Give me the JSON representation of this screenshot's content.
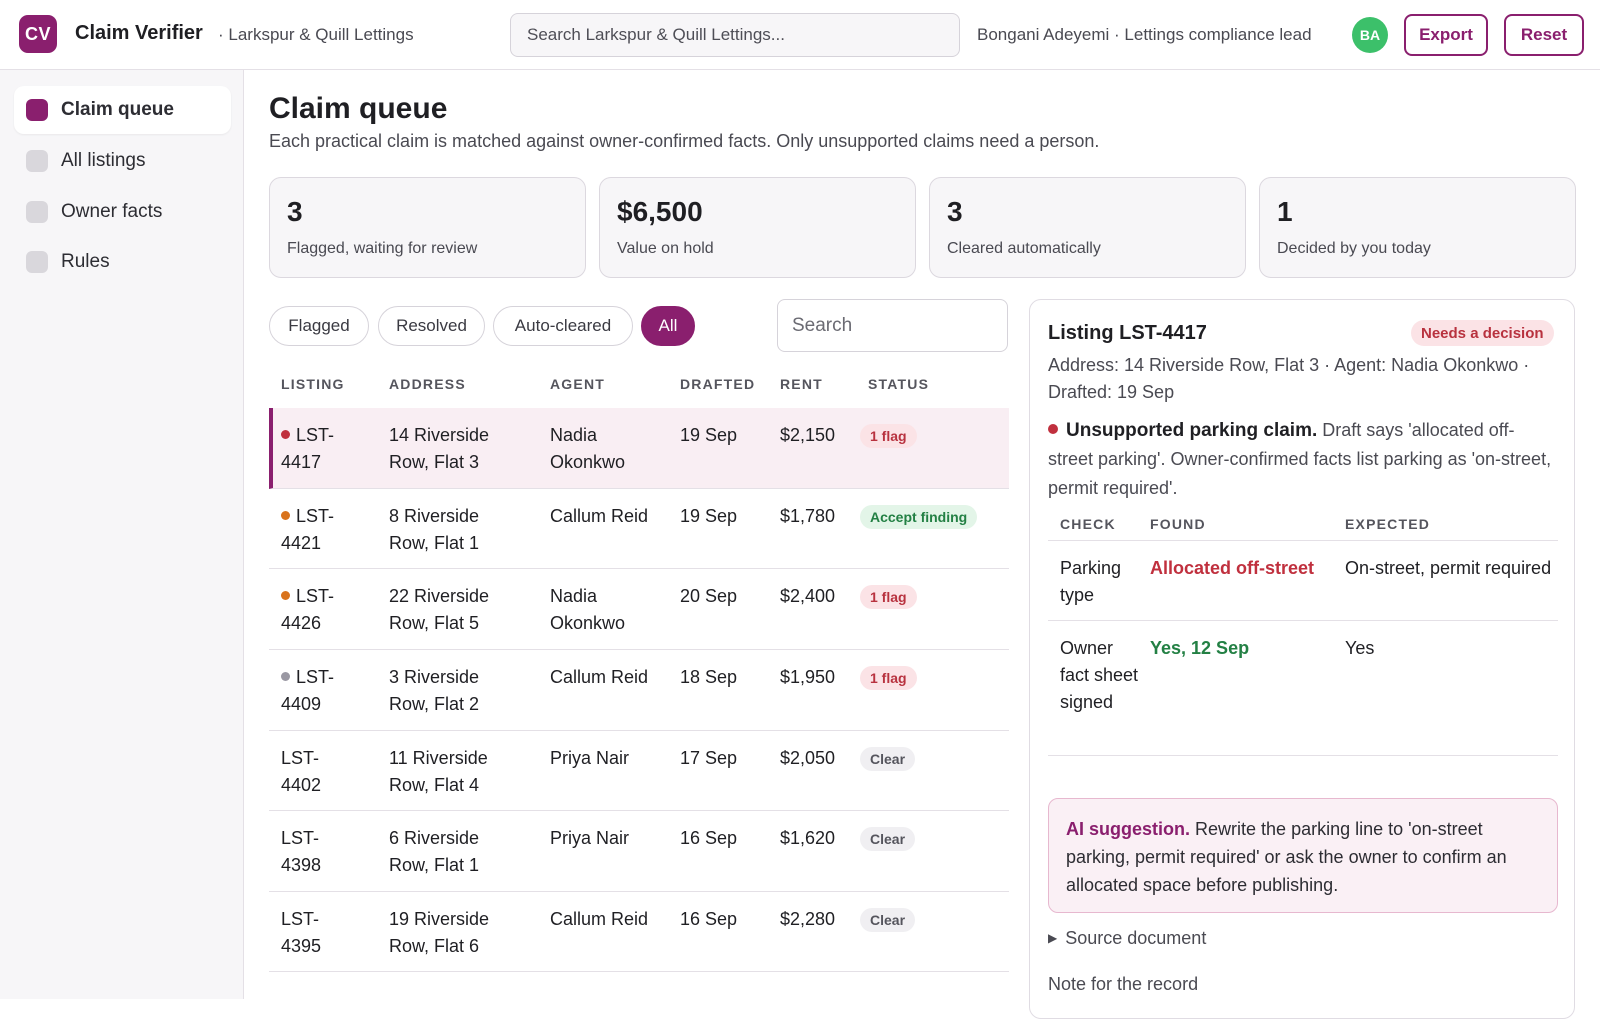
{
  "app": {
    "logo": "CV",
    "title": "Claim Verifier",
    "org": "· Larkspur & Quill Lettings",
    "search_placeholder": "Search Larkspur & Quill Lettings...",
    "user_label": "Bongani Adeyemi · Lettings compliance lead",
    "avatar_initials": "BA",
    "export_label": "Export",
    "reset_label": "Reset"
  },
  "sidebar": {
    "items": [
      {
        "label": "Claim queue",
        "active": true
      },
      {
        "label": "All listings",
        "active": false
      },
      {
        "label": "Owner facts",
        "active": false
      },
      {
        "label": "Rules",
        "active": false
      }
    ]
  },
  "main": {
    "title": "Claim queue",
    "subtitle": "Each practical claim is matched against owner-confirmed facts. Only unsupported claims need a person.",
    "stats": [
      {
        "value": "3",
        "label": "Flagged, waiting for review"
      },
      {
        "value": "$6,500",
        "label": "Value on hold"
      },
      {
        "value": "3",
        "label": "Cleared automatically"
      },
      {
        "value": "1",
        "label": "Decided by you today"
      }
    ],
    "filters": [
      {
        "label": "Flagged",
        "active": false
      },
      {
        "label": "Resolved",
        "active": false
      },
      {
        "label": "Auto-cleared",
        "active": false
      },
      {
        "label": "All",
        "active": true
      }
    ],
    "search_placeholder": "Search"
  },
  "table": {
    "columns": [
      "LISTING",
      "ADDRESS",
      "AGENT",
      "DRAFTED",
      "RENT",
      "STATUS"
    ],
    "rows": [
      {
        "listing_a": "LST-",
        "listing_b": "4417",
        "address_a": "14 Riverside",
        "address_b": "Row, Flat 3",
        "agent_a": "Nadia",
        "agent_b": "Okonkwo",
        "drafted": "19 Sep",
        "rent": "$2,150",
        "status": "1 flag",
        "status_kind": "flag",
        "dot": "#c0303e",
        "selected": true
      },
      {
        "listing_a": "LST-",
        "listing_b": "4421",
        "address_a": "8 Riverside",
        "address_b": "Row, Flat 1",
        "agent_a": "Callum Reid",
        "agent_b": "",
        "drafted": "19 Sep",
        "rent": "$1,780",
        "status": "Accept finding",
        "status_kind": "accept",
        "dot": "#d9731d",
        "selected": false
      },
      {
        "listing_a": "LST-",
        "listing_b": "4426",
        "address_a": "22 Riverside",
        "address_b": "Row, Flat 5",
        "agent_a": "Nadia",
        "agent_b": "Okonkwo",
        "drafted": "20 Sep",
        "rent": "$2,400",
        "status": "1 flag",
        "status_kind": "flag",
        "dot": "#d9731d",
        "selected": false
      },
      {
        "listing_a": "LST-",
        "listing_b": "4409",
        "address_a": "3 Riverside",
        "address_b": "Row, Flat 2",
        "agent_a": "Callum Reid",
        "agent_b": "",
        "drafted": "18 Sep",
        "rent": "$1,950",
        "status": "1 flag",
        "status_kind": "flag",
        "dot": "#9a98a3",
        "selected": false
      },
      {
        "listing_a": "LST-",
        "listing_b": "4402",
        "address_a": "11 Riverside",
        "address_b": "Row, Flat 4",
        "agent_a": "Priya Nair",
        "agent_b": "",
        "drafted": "17 Sep",
        "rent": "$2,050",
        "status": "Clear",
        "status_kind": "clear",
        "dot": "",
        "selected": false
      },
      {
        "listing_a": "LST-",
        "listing_b": "4398",
        "address_a": "6 Riverside",
        "address_b": "Row, Flat 1",
        "agent_a": "Priya Nair",
        "agent_b": "",
        "drafted": "16 Sep",
        "rent": "$1,620",
        "status": "Clear",
        "status_kind": "clear",
        "dot": "",
        "selected": false
      },
      {
        "listing_a": "LST-",
        "listing_b": "4395",
        "address_a": "19 Riverside",
        "address_b": "Row, Flat 6",
        "agent_a": "Callum Reid",
        "agent_b": "",
        "drafted": "16 Sep",
        "rent": "$2,280",
        "status": "Clear",
        "status_kind": "clear",
        "dot": "",
        "selected": false
      }
    ]
  },
  "detail": {
    "title": "Listing LST-4417",
    "badge": "Needs a decision",
    "meta": "Address: 14 Riverside Row, Flat 3 · Agent: Nadia Okonkwo · Drafted: 19 Sep",
    "finding_title": "Unsupported parking claim.",
    "finding_text": "Draft says 'allocated off-street parking'. Owner-confirmed facts list parking as 'on-street, permit required'.",
    "columns": [
      "CHECK",
      "FOUND",
      "EXPECTED"
    ],
    "checks": [
      {
        "check": "Parking type",
        "found": "Allocated off-street",
        "found_kind": "bad",
        "expected": "On-street, permit required"
      },
      {
        "check": "Owner fact sheet signed",
        "found": "Yes, 12 Sep",
        "found_kind": "good",
        "expected": "Yes"
      }
    ],
    "ai_label": "AI suggestion.",
    "ai_text": "Rewrite the parking line to 'on-street parking, permit required' or ask the owner to confirm an allocated space before publishing.",
    "source_label": "Source document",
    "note_label": "Note for the record"
  },
  "colors": {
    "accent": "#8a1f6e",
    "flag": "#c0303e",
    "success": "#238044"
  }
}
